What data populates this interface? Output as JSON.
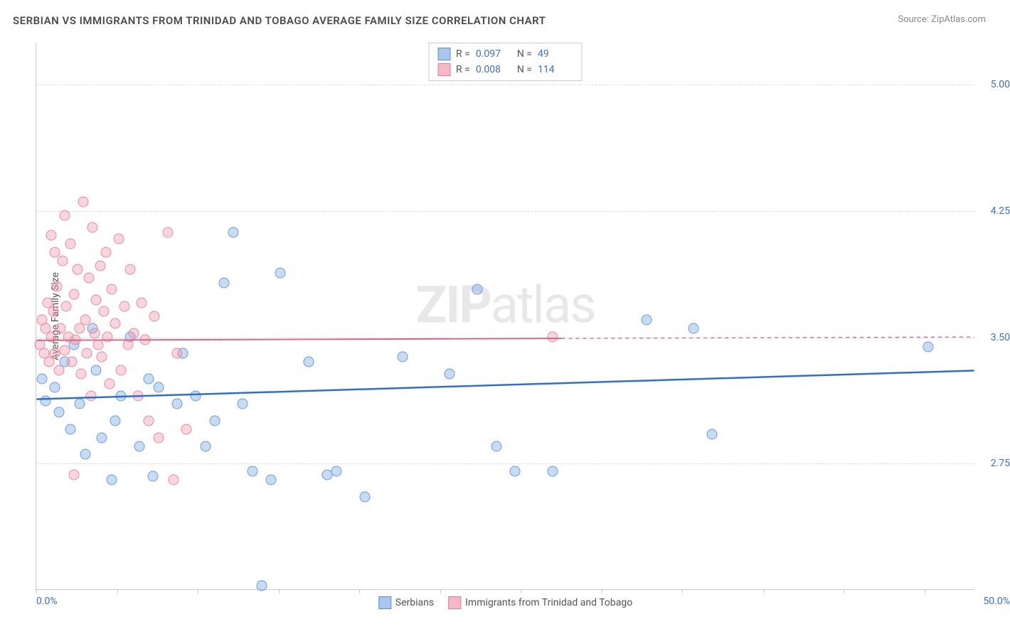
{
  "title": "SERBIAN VS IMMIGRANTS FROM TRINIDAD AND TOBAGO AVERAGE FAMILY SIZE CORRELATION CHART",
  "source": "Source: ZipAtlas.com",
  "watermark": {
    "bold": "ZIP",
    "rest": "atlas"
  },
  "chart": {
    "type": "scatter",
    "background_color": "#ffffff",
    "grid_color": "#dddddd",
    "xlim": [
      0,
      50
    ],
    "ylim": [
      2.0,
      5.25
    ],
    "xaxis_min_label": "0.0%",
    "xaxis_max_label": "50.0%",
    "xtick_positions_pct": [
      0,
      8.6,
      17.2,
      25.8,
      34.4,
      43.0,
      51.6,
      60.2,
      68.8,
      77.4,
      86.0,
      94.6
    ],
    "ylabel": "Average Family Size",
    "yticks": [
      {
        "value": 5.0,
        "label": "5.00"
      },
      {
        "value": 4.25,
        "label": "4.25"
      },
      {
        "value": 3.5,
        "label": "3.50"
      },
      {
        "value": 2.75,
        "label": "2.75"
      }
    ],
    "series": [
      {
        "name": "Serbians",
        "color_fill": "#a9c6ec",
        "color_stroke": "#5b8fd6",
        "r_value": "0.097",
        "n_value": "49",
        "trend": {
          "y_start": 3.13,
          "y_end": 3.3,
          "color": "#2f6fd0",
          "width": 2.5,
          "dash_from_x": null
        },
        "points": [
          [
            0.3,
            3.25
          ],
          [
            0.5,
            3.12
          ],
          [
            1.0,
            3.2
          ],
          [
            1.2,
            3.05
          ],
          [
            1.5,
            3.35
          ],
          [
            1.8,
            2.95
          ],
          [
            2.0,
            3.45
          ],
          [
            2.3,
            3.1
          ],
          [
            2.6,
            2.8
          ],
          [
            3.0,
            3.55
          ],
          [
            3.2,
            3.3
          ],
          [
            3.5,
            2.9
          ],
          [
            4.0,
            2.65
          ],
          [
            4.2,
            3.0
          ],
          [
            4.5,
            3.15
          ],
          [
            5.0,
            3.5
          ],
          [
            5.5,
            2.85
          ],
          [
            6.0,
            3.25
          ],
          [
            6.2,
            2.67
          ],
          [
            6.5,
            3.2
          ],
          [
            7.5,
            3.1
          ],
          [
            7.8,
            3.4
          ],
          [
            8.5,
            3.15
          ],
          [
            9.0,
            2.85
          ],
          [
            9.5,
            3.0
          ],
          [
            10.5,
            4.12
          ],
          [
            10.0,
            3.82
          ],
          [
            11.0,
            3.1
          ],
          [
            11.5,
            2.7
          ],
          [
            12.5,
            2.65
          ],
          [
            12.0,
            2.02
          ],
          [
            13.0,
            3.88
          ],
          [
            14.5,
            3.35
          ],
          [
            15.5,
            2.68
          ],
          [
            16.0,
            2.7
          ],
          [
            17.5,
            2.55
          ],
          [
            19.5,
            3.38
          ],
          [
            22.0,
            3.28
          ],
          [
            23.5,
            3.78
          ],
          [
            24.5,
            2.85
          ],
          [
            25.5,
            2.7
          ],
          [
            27.5,
            2.7
          ],
          [
            32.5,
            3.6
          ],
          [
            35.0,
            3.55
          ],
          [
            36.0,
            2.92
          ],
          [
            47.5,
            3.44
          ]
        ]
      },
      {
        "name": "Immigrants from Trinidad and Tobago",
        "color_fill": "#f5b8c6",
        "color_stroke": "#e77a94",
        "r_value": "0.008",
        "n_value": "114",
        "trend": {
          "y_start": 3.48,
          "y_end": 3.5,
          "color": "#e05a7a",
          "width": 1.8,
          "dash_from_x": 28
        },
        "points": [
          [
            0.2,
            3.45
          ],
          [
            0.3,
            3.6
          ],
          [
            0.4,
            3.4
          ],
          [
            0.5,
            3.55
          ],
          [
            0.6,
            3.7
          ],
          [
            0.7,
            3.35
          ],
          [
            0.8,
            3.5
          ],
          [
            0.9,
            3.65
          ],
          [
            1.0,
            3.4
          ],
          [
            1.1,
            3.8
          ],
          [
            1.2,
            3.3
          ],
          [
            1.3,
            3.55
          ],
          [
            1.4,
            3.95
          ],
          [
            1.5,
            3.42
          ],
          [
            1.6,
            3.68
          ],
          [
            1.7,
            3.5
          ],
          [
            1.8,
            4.05
          ],
          [
            1.9,
            3.35
          ],
          [
            2.0,
            3.75
          ],
          [
            2.1,
            3.48
          ],
          [
            2.2,
            3.9
          ],
          [
            2.3,
            3.55
          ],
          [
            2.4,
            3.28
          ],
          [
            2.5,
            4.3
          ],
          [
            2.6,
            3.6
          ],
          [
            2.7,
            3.4
          ],
          [
            2.8,
            3.85
          ],
          [
            2.9,
            3.15
          ],
          [
            3.0,
            4.15
          ],
          [
            3.1,
            3.52
          ],
          [
            3.2,
            3.72
          ],
          [
            3.3,
            3.45
          ],
          [
            3.4,
            3.92
          ],
          [
            3.5,
            3.38
          ],
          [
            3.6,
            3.65
          ],
          [
            3.7,
            4.0
          ],
          [
            3.8,
            3.5
          ],
          [
            3.9,
            3.22
          ],
          [
            4.0,
            3.78
          ],
          [
            4.2,
            3.58
          ],
          [
            4.4,
            4.08
          ],
          [
            4.5,
            3.3
          ],
          [
            4.7,
            3.68
          ],
          [
            4.9,
            3.45
          ],
          [
            5.0,
            3.9
          ],
          [
            5.2,
            3.52
          ],
          [
            5.4,
            3.15
          ],
          [
            5.6,
            3.7
          ],
          [
            5.8,
            3.48
          ],
          [
            6.0,
            3.0
          ],
          [
            6.3,
            3.62
          ],
          [
            6.5,
            2.9
          ],
          [
            7.0,
            4.12
          ],
          [
            7.5,
            3.4
          ],
          [
            8.0,
            2.95
          ],
          [
            7.3,
            2.65
          ],
          [
            2.0,
            2.68
          ],
          [
            1.5,
            4.22
          ],
          [
            0.8,
            4.1
          ],
          [
            1.0,
            4.0
          ],
          [
            27.5,
            3.5
          ]
        ]
      }
    ],
    "bottom_legend": [
      {
        "swatch": "blue",
        "label": "Serbians"
      },
      {
        "swatch": "pink",
        "label": "Immigrants from Trinidad and Tobago"
      }
    ]
  }
}
